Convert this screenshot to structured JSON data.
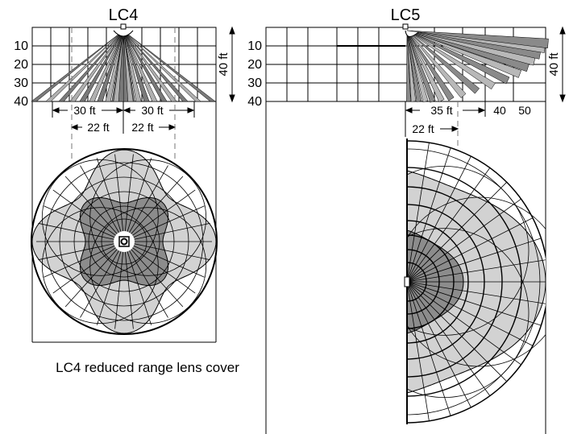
{
  "lc4": {
    "title": "LC4",
    "depth_ticks": [
      "10",
      "20",
      "30",
      "40"
    ],
    "height_label": "40 ft",
    "range_left": "30 ft",
    "range_right": "30 ft",
    "width_left": "22 ft",
    "width_right": "22 ft",
    "caption": "LC4 reduced range lens cover"
  },
  "lc5": {
    "title": "LC5",
    "depth_ticks": [
      "10",
      "20",
      "30",
      "40"
    ],
    "height_label": "40 ft",
    "range_35": "35 ft",
    "range_40": "40",
    "range_50": "50",
    "width_22": "22 ft"
  },
  "colors": {
    "line": "#000000",
    "light_zone": "#d2d2d2",
    "dark_zone": "#8c8c8c",
    "grid": "#000000",
    "background": "#ffffff"
  }
}
